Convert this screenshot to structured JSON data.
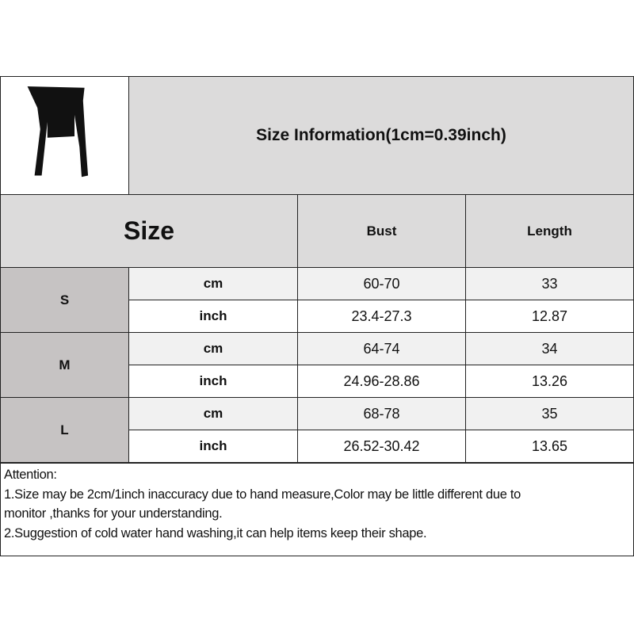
{
  "title": "Size Information(1cm=0.39inch)",
  "header": {
    "size": "Size",
    "bust": "Bust",
    "length": "Length"
  },
  "product_image": "black off-shoulder long-sleeve crop top",
  "rows": [
    {
      "size": "S",
      "cm": {
        "unit": "cm",
        "bust": "60-70",
        "length": "33"
      },
      "inch": {
        "unit": "inch",
        "bust": "23.4-27.3",
        "length": "12.87"
      }
    },
    {
      "size": "M",
      "cm": {
        "unit": "cm",
        "bust": "64-74",
        "length": "34"
      },
      "inch": {
        "unit": "inch",
        "bust": "24.96-28.86",
        "length": "13.26"
      }
    },
    {
      "size": "L",
      "cm": {
        "unit": "cm",
        "bust": "68-78",
        "length": "35"
      },
      "inch": {
        "unit": "inch",
        "bust": "26.52-30.42",
        "length": "13.65"
      }
    }
  ],
  "attention": {
    "heading": "Attention:",
    "line1": "1.Size may be 2cm/1inch inaccuracy due to hand measure,Color may be little different due to",
    "line1b": "monitor ,thanks for your understanding.",
    "line2": "2.Suggestion of cold water hand washing,it can help items keep their shape."
  }
}
